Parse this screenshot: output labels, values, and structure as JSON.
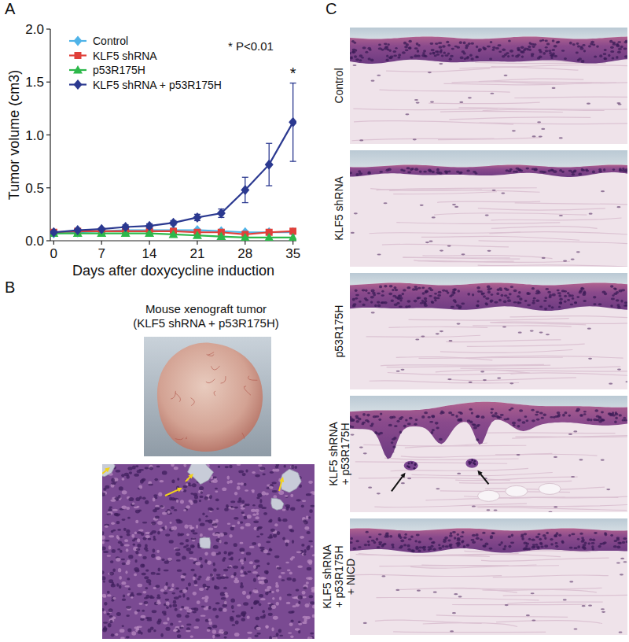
{
  "chart_data": {
    "type": "line",
    "x": [
      0,
      3.5,
      7,
      10.5,
      14,
      17.5,
      21,
      24.5,
      28,
      31.5,
      35
    ],
    "xlim": [
      -0.5,
      35.5
    ],
    "xticks": [
      0,
      7,
      14,
      21,
      28,
      35
    ],
    "ylim": [
      0,
      2
    ],
    "yticks": [
      {
        "value": 0,
        "label": "0.0"
      },
      {
        "value": 0.5,
        "label": "0.5"
      },
      {
        "value": 1,
        "label": "1.0"
      },
      {
        "value": 1.5,
        "label": "1.5"
      },
      {
        "value": 2,
        "label": "2.0"
      }
    ],
    "x_label": "Days after doxycycline induction",
    "y_label": "Tumor volume (cm3)",
    "legend": "upper left",
    "series": [
      {
        "name": "Control",
        "color": "#4fb3e8",
        "marker": "diamond",
        "values": [
          0.07,
          0.08,
          0.09,
          0.1,
          0.1,
          0.1,
          0.1,
          0.09,
          0.08,
          0.08,
          0.08
        ]
      },
      {
        "name": "KLF5 shRNA",
        "color": "#e0403a",
        "marker": "square",
        "values": [
          0.08,
          0.09,
          0.09,
          0.09,
          0.09,
          0.09,
          0.08,
          0.08,
          0.06,
          0.08,
          0.09
        ]
      },
      {
        "name": "p53R175H",
        "color": "#2db84a",
        "marker": "triangle",
        "values": [
          0.07,
          0.07,
          0.07,
          0.07,
          0.07,
          0.06,
          0.05,
          0.04,
          0.03,
          0.03,
          0.03
        ]
      },
      {
        "name": "KLF5 shRNA + p53R175H",
        "color": "#2b3990",
        "marker": "diamond",
        "values": [
          0.08,
          0.1,
          0.11,
          0.13,
          0.14,
          0.17,
          0.22,
          0.26,
          0.48,
          0.72,
          1.12
        ],
        "errors": [
          0.01,
          0.01,
          0.01,
          0.02,
          0.02,
          0.02,
          0.03,
          0.04,
          0.12,
          0.2,
          0.37
        ]
      }
    ],
    "annotations": [
      {
        "text": "* P<0.01"
      },
      {
        "text": "*",
        "x": 35
      }
    ]
  },
  "panel_labels": [
    "A",
    "B",
    "C"
  ],
  "panel_b": {
    "title": "Mouse xenograft tumor",
    "subtitle": "(KLF5 shRNA + p53R175H)"
  },
  "panel_c": {
    "rows": [
      [
        "Control"
      ],
      [
        "KLF5 shRNA"
      ],
      [
        "p53R175H"
      ],
      [
        "KLF5 shRNA",
        "+ p53R175H"
      ],
      [
        "KLF5 shRNA",
        "+ p53R175H",
        "+ NICD"
      ]
    ]
  }
}
